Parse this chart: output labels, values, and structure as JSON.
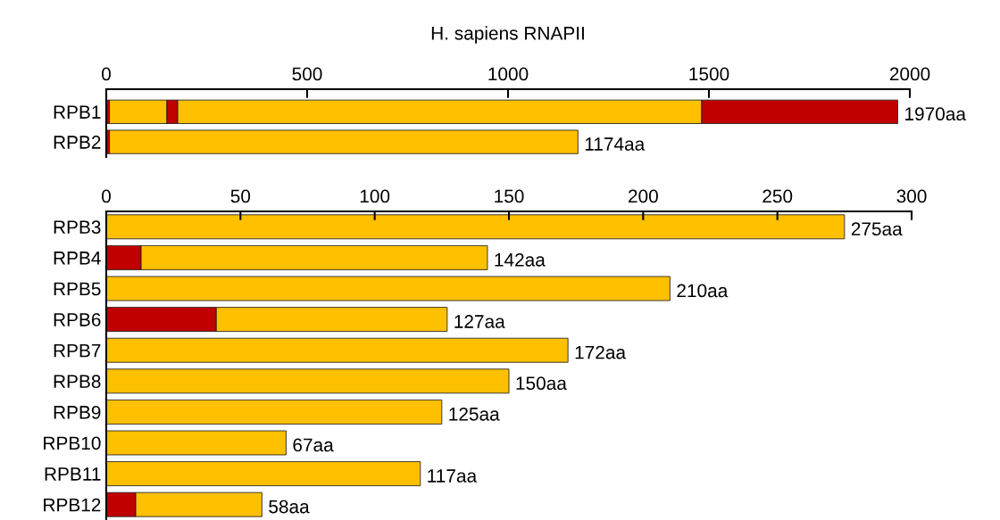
{
  "chart_data": [
    {
      "type": "bar",
      "title": "H. sapiens RNAPII",
      "orientation": "horizontal",
      "stacked": true,
      "categories": [
        "RPB1",
        "RPB2"
      ],
      "xlim": [
        0,
        2000
      ],
      "xticks": [
        0,
        500,
        1000,
        1500,
        2000
      ],
      "grid": false,
      "legend": false,
      "series": [
        {
          "color": "#c00000",
          "values": [
            8,
            8
          ]
        },
        {
          "color": "#ffc000",
          "values": [
            143,
            1166
          ]
        },
        {
          "color": "#c00000",
          "values": [
            27,
            null
          ]
        },
        {
          "color": "#ffc000",
          "values": [
            1304,
            null
          ]
        },
        {
          "color": "#c00000",
          "values": [
            488,
            null
          ]
        }
      ],
      "totals": [
        "1970aa",
        "1174aa"
      ]
    },
    {
      "type": "bar",
      "orientation": "horizontal",
      "stacked": true,
      "categories": [
        "RPB3",
        "RPB4",
        "RPB5",
        "RPB6",
        "RPB7",
        "RPB8",
        "RPB9",
        "RPB10",
        "RPB11",
        "RPB12"
      ],
      "xlim": [
        0,
        300
      ],
      "xticks": [
        0,
        50,
        100,
        150,
        200,
        250,
        300
      ],
      "grid": false,
      "legend": false,
      "series": [
        {
          "color": "#c00000",
          "values": [
            null,
            13,
            null,
            41,
            null,
            null,
            null,
            null,
            null,
            11
          ]
        },
        {
          "color": "#ffc000",
          "values": [
            275,
            129,
            210,
            86,
            172,
            150,
            125,
            67,
            117,
            47
          ]
        }
      ],
      "totals": [
        "275aa",
        "142aa",
        "210aa",
        "127aa",
        "172aa",
        "150aa",
        "125aa",
        "67aa",
        "117aa",
        "58aa"
      ]
    }
  ]
}
